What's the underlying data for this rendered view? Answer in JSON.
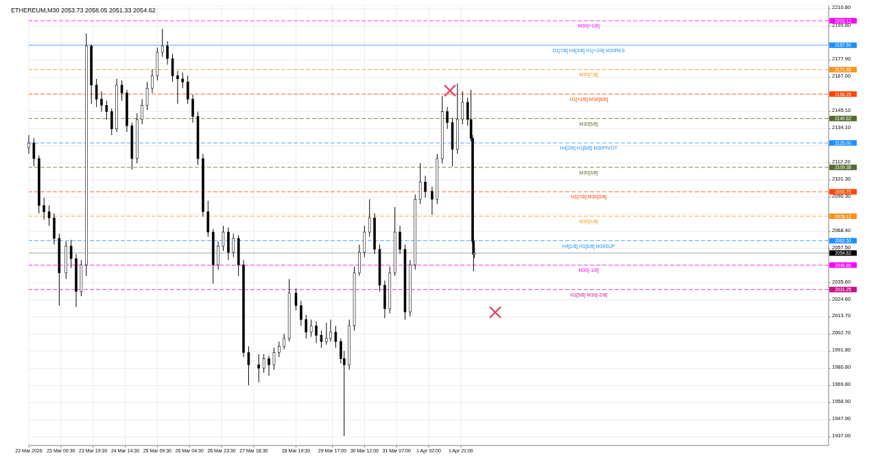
{
  "chart_data": {
    "type": "candlestick",
    "title": "ETHEREUM,M30  2053.73 2058.05 2051.33 2054.62",
    "color": "#000000",
    "grid": true,
    "xlim": [
      "2026-03-22T05:30",
      "2026-04-10T22:30"
    ],
    "xticks": [
      {
        "value": "2026-03-22T05:30",
        "label": "22 Mar 2026"
      },
      {
        "value": "2026-03-23T00:30",
        "label": "23 Mar 00:30"
      },
      {
        "value": "2026-03-23T19:30",
        "label": "23 Mar 19:30"
      },
      {
        "value": "2026-03-24T14:30",
        "label": "24 Mar 14:30"
      },
      {
        "value": "2026-03-25T09:30",
        "label": "25 Mar 09:30"
      },
      {
        "value": "2026-03-26T04:30",
        "label": "26 Mar 04:30"
      },
      {
        "value": "2026-03-26T23:30",
        "label": "26 Mar 23:30"
      },
      {
        "value": "2026-03-27T18:30",
        "label": "27 Mar 18:30"
      },
      {
        "value": "2026-03-28T19:30",
        "label": "28 Mar 19:30"
      },
      {
        "value": "2026-03-29T17:00",
        "label": "29 Mar 17:00"
      },
      {
        "value": "2026-03-30T12:00",
        "label": "30 Mar 12:00"
      },
      {
        "value": "2026-03-31T07:00",
        "label": "31 Mar 07:00"
      },
      {
        "value": "2026-04-01T02:00",
        "label": "1 Apr 02:00"
      },
      {
        "value": "2026-04-01T21:00",
        "label": "1 Apr 21:00"
      }
    ],
    "ylim": [
      1931.5,
      2212.9
    ],
    "yticks": [
      {
        "value": 2210.8,
        "label": "2210.80"
      },
      {
        "value": 2199.8,
        "label": "2199.80"
      },
      {
        "value": 2188.9,
        "label": null
      },
      {
        "value": 2177.9,
        "label": "2177.90"
      },
      {
        "value": 2167,
        "label": "2167.00"
      },
      {
        "value": 2156.1,
        "label": null
      },
      {
        "value": 2145.1,
        "label": "2145.10"
      },
      {
        "value": 2134.1,
        "label": "2134.10"
      },
      {
        "value": 2123.2,
        "label": null
      },
      {
        "value": 2112.2,
        "label": "2112.20"
      },
      {
        "value": 2101.3,
        "label": "2101.30"
      },
      {
        "value": 2090.3,
        "label": "2090.30"
      },
      {
        "value": 2079.4,
        "label": null
      },
      {
        "value": 2068.4,
        "label": "2068.40"
      },
      {
        "value": 2057.5,
        "label": "2057.50"
      },
      {
        "value": 2046.5,
        "label": null
      },
      {
        "value": 2035.6,
        "label": "2035.60"
      },
      {
        "value": 2024.6,
        "label": "2024.60"
      },
      {
        "value": 2013.7,
        "label": "2013.70"
      },
      {
        "value": 2002.7,
        "label": "2002.70"
      },
      {
        "value": 1991.8,
        "label": "1991.80"
      },
      {
        "value": 1980.8,
        "label": "1980.80"
      },
      {
        "value": 1969.8,
        "label": "1969.80"
      },
      {
        "value": 1958.9,
        "label": "1958.90"
      },
      {
        "value": 1947.9,
        "label": "1947.90"
      },
      {
        "value": 1937,
        "label": "1937.00"
      }
    ],
    "ref_lines": [
      {
        "axis": "y",
        "value": 2203.12,
        "label": "M30[+1/8]",
        "color": "#ff00ff",
        "line_style": "dashed"
      },
      {
        "axis": "y",
        "value": 2187.5,
        "label": "D1[7/8] H4[3/8] H1[+2/8] M30RES",
        "color": "#1e90ff",
        "line_style": "solid"
      },
      {
        "axis": "y",
        "value": 2171.88,
        "label": "M30[7/8]",
        "color": "#f7931e",
        "line_style": "dashed"
      },
      {
        "axis": "y",
        "value": 2156.25,
        "label": "H1[+1/8] M30[6/8]",
        "color": "#ff4500",
        "line_style": "dashed"
      },
      {
        "axis": "y",
        "value": 2140.62,
        "label": "M30[5/8]",
        "color": "#556b2f",
        "line_style": "dashed"
      },
      {
        "axis": "y",
        "value": 2125,
        "label": "H4[2/8] H1[8/8] M30PIVOT",
        "color": "#1e90ff",
        "line_style": "dashed"
      },
      {
        "axis": "y",
        "value": 2109.38,
        "label": "M30[3/8]",
        "color": "#556b2f",
        "line_style": "dashed"
      },
      {
        "axis": "y",
        "value": 2093.75,
        "label": "H1[7/8] M30[2/8]",
        "color": "#ff4500",
        "line_style": "dashed"
      },
      {
        "axis": "y",
        "value": 2078.12,
        "label": "M30[1/8]",
        "color": "#f7931e",
        "line_style": "dashed"
      },
      {
        "axis": "y",
        "value": 2062.5,
        "label": "H4[1/8] H1[6/8] M30SUP",
        "color": "#1e90ff",
        "line_style": "dashed"
      },
      {
        "axis": "y",
        "value": 2054.62,
        "label": null,
        "color": "#000000",
        "line_style": "solid"
      },
      {
        "axis": "y",
        "value": 2046.88,
        "label": "M30[-1/8]",
        "color": "#ff00ff",
        "line_style": "dashed"
      },
      {
        "axis": "y",
        "value": 2031.25,
        "label": "H1[5/8] M30[-2/8]",
        "color": "#c71585",
        "line_style": "dashed"
      }
    ],
    "annotations": [
      "2203.12",
      "2187.50",
      "2171.88",
      "2156.25",
      "2140.62",
      "2125.00",
      "2109.38",
      "2093.75",
      "2078.12",
      "2062.50",
      "2054.62",
      "2046.88",
      "2031.25"
    ],
    "x": [
      "2026-03-22T05:30",
      "2026-03-22T08:30",
      "2026-03-22T11:30",
      "2026-03-22T14:30",
      "2026-03-22T17:30",
      "2026-03-22T20:30",
      "2026-03-22T23:30",
      "2026-03-23T03:30",
      "2026-03-23T06:30",
      "2026-03-23T09:30",
      "2026-03-23T12:30",
      "2026-03-23T15:30",
      "2026-03-23T18:30",
      "2026-03-23T21:30",
      "2026-03-24T00:30",
      "2026-03-24T03:30",
      "2026-03-24T06:30",
      "2026-03-24T09:30",
      "2026-03-24T12:30",
      "2026-03-24T15:30",
      "2026-03-24T18:30",
      "2026-03-24T21:30",
      "2026-03-25T00:30",
      "2026-03-25T03:30",
      "2026-03-25T06:30",
      "2026-03-25T09:30",
      "2026-03-25T12:30",
      "2026-03-25T15:30",
      "2026-03-25T18:30",
      "2026-03-25T21:30",
      "2026-03-26T00:30",
      "2026-03-26T03:30",
      "2026-03-26T06:30",
      "2026-03-26T09:30",
      "2026-03-26T12:30",
      "2026-03-26T15:30",
      "2026-03-26T18:30",
      "2026-03-26T21:30",
      "2026-03-27T00:30",
      "2026-03-27T03:30",
      "2026-03-27T06:30",
      "2026-03-27T09:30",
      "2026-03-27T12:30",
      "2026-03-27T15:30",
      "2026-03-27T21:30",
      "2026-03-28T00:30",
      "2026-03-28T03:30",
      "2026-03-28T06:30",
      "2026-03-28T09:30",
      "2026-03-28T12:30",
      "2026-03-28T15:30",
      "2026-03-28T19:30",
      "2026-03-28T22:30",
      "2026-03-29T01:30",
      "2026-03-29T04:30",
      "2026-03-29T07:30",
      "2026-03-29T10:30",
      "2026-03-29T13:30",
      "2026-03-29T16:00",
      "2026-03-29T19:00",
      "2026-03-29T22:00",
      "2026-03-30T00:00",
      "2026-03-30T03:00",
      "2026-03-30T06:00",
      "2026-03-30T09:00",
      "2026-03-30T12:00",
      "2026-03-30T15:00",
      "2026-03-30T18:00",
      "2026-03-30T21:00",
      "2026-03-31T00:00",
      "2026-03-31T03:00",
      "2026-03-31T06:00",
      "2026-03-31T09:00",
      "2026-03-31T12:00",
      "2026-03-31T15:00",
      "2026-03-31T18:00",
      "2026-03-31T21:00",
      "2026-04-01T00:00",
      "2026-04-01T04:00",
      "2026-04-01T07:00",
      "2026-04-01T10:00",
      "2026-04-01T13:00",
      "2026-04-01T16:00",
      "2026-04-01T19:00",
      "2026-04-01T22:00",
      "2026-04-02T01:00",
      "2026-04-02T03:00",
      "2026-04-02T04:00",
      "2026-04-02T04:30",
      "2026-04-02T05:00"
    ],
    "ohlc": [
      [
        2122,
        2130,
        2118,
        2125
      ],
      [
        2125,
        2128,
        2110,
        2115
      ],
      [
        2115,
        2117,
        2080,
        2085
      ],
      [
        2085,
        2090,
        2076,
        2081
      ],
      [
        2081,
        2085,
        2072,
        2077
      ],
      [
        2077,
        2080,
        2060,
        2064
      ],
      [
        2064,
        2067,
        2021,
        2042
      ],
      [
        2042,
        2062,
        2038,
        2059
      ],
      [
        2059,
        2063,
        2045,
        2051
      ],
      [
        2051,
        2054,
        2020,
        2030
      ],
      [
        2030,
        2050,
        2027,
        2047
      ],
      [
        2047,
        2195,
        2040,
        2187
      ],
      [
        2187,
        2188,
        2150,
        2162
      ],
      [
        2162,
        2166,
        2148,
        2153
      ],
      [
        2153,
        2158,
        2145,
        2149
      ],
      [
        2149,
        2152,
        2140,
        2145
      ],
      [
        2145,
        2147,
        2130,
        2134
      ],
      [
        2134,
        2166,
        2132,
        2162
      ],
      [
        2162,
        2165,
        2152,
        2157
      ],
      [
        2157,
        2159,
        2132,
        2136
      ],
      [
        2136,
        2138,
        2108,
        2115
      ],
      [
        2115,
        2144,
        2112,
        2140
      ],
      [
        2140,
        2153,
        2137,
        2149
      ],
      [
        2149,
        2164,
        2146,
        2160
      ],
      [
        2160,
        2172,
        2157,
        2168
      ],
      [
        2168,
        2186,
        2165,
        2183
      ],
      [
        2183,
        2198,
        2180,
        2187
      ],
      [
        2187,
        2190,
        2175,
        2179
      ],
      [
        2179,
        2182,
        2164,
        2168
      ],
      [
        2168,
        2171,
        2150,
        2166
      ],
      [
        2166,
        2170,
        2160,
        2164
      ],
      [
        2164,
        2168,
        2150,
        2153
      ],
      [
        2153,
        2156,
        2138,
        2142
      ],
      [
        2142,
        2145,
        2111,
        2115
      ],
      [
        2115,
        2118,
        2078,
        2081
      ],
      [
        2081,
        2088,
        2065,
        2068
      ],
      [
        2068,
        2070,
        2035,
        2047
      ],
      [
        2047,
        2062,
        2044,
        2059
      ],
      [
        2059,
        2072,
        2056,
        2068
      ],
      [
        2068,
        2071,
        2050,
        2055
      ],
      [
        2055,
        2067,
        2052,
        2064
      ],
      [
        2064,
        2066,
        2040,
        2047
      ],
      [
        2047,
        2050,
        1988,
        1991
      ],
      [
        1991,
        1995,
        1970,
        1983
      ],
      [
        1983,
        1990,
        1972,
        1981
      ],
      [
        1981,
        1990,
        1978,
        1987
      ],
      [
        1987,
        1989,
        1976,
        1983
      ],
      [
        1983,
        1994,
        1980,
        1991
      ],
      [
        1991,
        1998,
        1988,
        1995
      ],
      [
        1995,
        2003,
        1993,
        2000
      ],
      [
        2000,
        2038,
        1998,
        2029
      ],
      [
        2029,
        2032,
        2018,
        2021
      ],
      [
        2021,
        2024,
        2008,
        2012
      ],
      [
        2012,
        2015,
        2000,
        2004
      ],
      [
        2004,
        2012,
        2001,
        2008
      ],
      [
        2008,
        2011,
        1997,
        2002
      ],
      [
        2002,
        2005,
        1994,
        1998
      ],
      [
        1998,
        2010,
        1996,
        2000
      ],
      [
        2000,
        2012,
        1998,
        2004
      ],
      [
        2004,
        2008,
        1994,
        1998
      ],
      [
        1998,
        2000,
        1984,
        1987
      ],
      [
        1987,
        1992,
        1937.5,
        1983
      ],
      [
        1983,
        2012,
        1980,
        2008
      ],
      [
        2008,
        2046,
        2005,
        2042
      ],
      [
        2042,
        2060,
        2040,
        2055
      ],
      [
        2055,
        2072,
        2052,
        2068
      ],
      [
        2068,
        2089,
        2065,
        2077
      ],
      [
        2077,
        2080,
        2054,
        2057
      ],
      [
        2057,
        2060,
        2030,
        2034
      ],
      [
        2034,
        2037,
        2013,
        2019
      ],
      [
        2019,
        2046,
        2016,
        2042
      ],
      [
        2042,
        2084,
        2040,
        2068
      ],
      [
        2068,
        2072,
        2054,
        2057
      ],
      [
        2057,
        2060,
        2012,
        2017
      ],
      [
        2017,
        2050,
        2014,
        2047
      ],
      [
        2047,
        2092,
        2044,
        2089
      ],
      [
        2089,
        2112,
        2086,
        2100
      ],
      [
        2100,
        2104,
        2090,
        2094
      ],
      [
        2094,
        2097,
        2079,
        2089
      ],
      [
        2089,
        2118,
        2086,
        2115
      ],
      [
        2115,
        2155,
        2112,
        2145
      ],
      [
        2145,
        2148,
        2134,
        2138
      ],
      [
        2138,
        2141,
        2110,
        2121
      ],
      [
        2121,
        2163,
        2118,
        2140
      ],
      [
        2140,
        2158,
        2137,
        2151
      ],
      [
        2151,
        2154,
        2136,
        2140
      ],
      [
        2140,
        2159,
        2126,
        2128
      ],
      [
        2128,
        2130,
        2060,
        2062
      ],
      [
        2062,
        2064,
        2043,
        2053.73
      ],
      [
        2053.73,
        2058.05,
        2051.33,
        2054.62
      ]
    ]
  }
}
